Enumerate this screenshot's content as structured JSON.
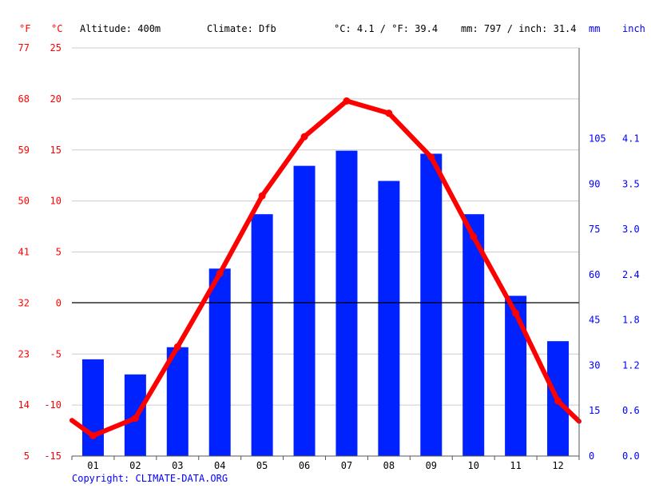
{
  "header": {
    "unit_f": "°F",
    "unit_c": "°C",
    "altitude": "Altitude: 400m",
    "climate": "Climate: Dfb",
    "avg_temp": "°C: 4.1 / °F: 39.4",
    "precip_total": "mm: 797 / inch: 31.4",
    "unit_mm": "mm",
    "unit_inch": "inch"
  },
  "copyright": "Copyright: CLIMATE-DATA.ORG",
  "chart_data": {
    "type": "bar+line",
    "categories": [
      "01",
      "02",
      "03",
      "04",
      "05",
      "06",
      "07",
      "08",
      "09",
      "10",
      "11",
      "12"
    ],
    "series": [
      {
        "kind": "bar",
        "axis": "right",
        "values": [
          32,
          27,
          36,
          62,
          80,
          96,
          101,
          91,
          100,
          80,
          53,
          38
        ]
      },
      {
        "kind": "line",
        "axis": "left",
        "values": [
          -13.0,
          -11.3,
          -4.3,
          2.9,
          10.5,
          16.3,
          19.8,
          18.6,
          14.3,
          6.5,
          -1.0,
          -9.6
        ],
        "edge_values": [
          -11.5,
          -11.6
        ]
      }
    ],
    "y_left": {
      "range": [
        -15,
        25
      ],
      "ticks_c": [
        "25",
        "20",
        "15",
        "10",
        "5",
        "0",
        "-5",
        "-10",
        "-15"
      ],
      "ticks_f": [
        "77",
        "68",
        "59",
        "50",
        "41",
        "32",
        "23",
        "14",
        "5"
      ]
    },
    "y_right": {
      "range": [
        0,
        135
      ],
      "ticks_mm": [
        "105",
        "90",
        "75",
        "60",
        "45",
        "30",
        "15",
        "0"
      ],
      "ticks_inch": [
        "4.1",
        "3.5",
        "3.0",
        "2.4",
        "1.8",
        "1.2",
        "0.6",
        "0.0"
      ]
    },
    "grid": true,
    "colors": {
      "bars": "#0022ff",
      "line": "#ff0000",
      "grid": "#cccccc",
      "zero_line": "#000000"
    }
  }
}
